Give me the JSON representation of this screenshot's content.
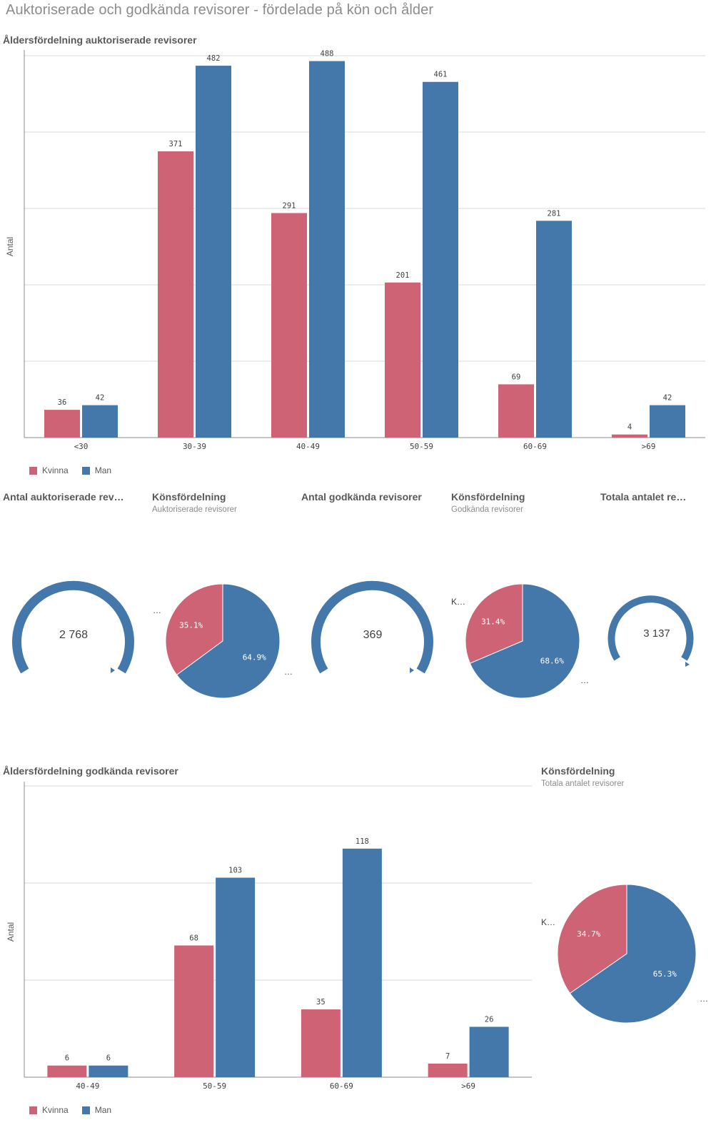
{
  "page_title": "Auktoriserade och godkända revisorer - fördelade på kön och ålder",
  "colors": {
    "kvinna": "#cd6374",
    "man": "#4477aa",
    "grid": "#d9d9d9",
    "axis": "#8c8c8c"
  },
  "legend": {
    "kvinna": "Kvinna",
    "man": "Man"
  },
  "chart1": {
    "title": "Åldersfördelning auktoriserade revisorer",
    "ylabel": "Antal",
    "chart_data": {
      "type": "bar",
      "categories": [
        "<30",
        "30-39",
        "40-49",
        "50-59",
        "60-69",
        ">69"
      ],
      "series": [
        {
          "name": "Kvinna",
          "values": [
            36,
            371,
            291,
            201,
            69,
            4
          ]
        },
        {
          "name": "Man",
          "values": [
            42,
            482,
            488,
            461,
            281,
            42
          ]
        }
      ],
      "ylim": [
        0,
        495
      ],
      "grid": true,
      "legend": "bottom-left"
    }
  },
  "kpi1": {
    "title": "Antal auktoriserade rev…",
    "value": "2 768"
  },
  "pie1": {
    "title": "Könsfördelning",
    "subtitle": "Auktoriserade revisorer",
    "chart_data": {
      "type": "pie",
      "labels": [
        "Kvinna",
        "Man"
      ],
      "values": [
        35.1,
        64.9
      ],
      "value_labels": [
        "35.1%",
        "64.9%"
      ]
    }
  },
  "kpi2": {
    "title": "Antal godkända revisorer",
    "value": "369"
  },
  "pie2": {
    "title": "Könsfördelning",
    "subtitle": "Godkända revisorer",
    "left_label": "K…",
    "chart_data": {
      "type": "pie",
      "labels": [
        "Kvinna",
        "Man"
      ],
      "values": [
        31.4,
        68.6
      ],
      "value_labels": [
        "31.4%",
        "68.6%"
      ]
    }
  },
  "kpi3": {
    "title": "Totala antalet re…",
    "value": "3 137"
  },
  "chart2": {
    "title": "Åldersfördelning godkända revisorer",
    "ylabel": "Antal",
    "chart_data": {
      "type": "bar",
      "categories": [
        "40-49",
        "50-59",
        "60-69",
        ">69"
      ],
      "series": [
        {
          "name": "Kvinna",
          "values": [
            6,
            68,
            35,
            7
          ]
        },
        {
          "name": "Man",
          "values": [
            6,
            103,
            118,
            26
          ]
        }
      ],
      "ylim": [
        0,
        150
      ],
      "grid": true,
      "legend": "bottom-left"
    }
  },
  "pie3": {
    "title": "Könsfördelning",
    "subtitle": "Totala antalet revisorer",
    "left_label": "K…",
    "chart_data": {
      "type": "pie",
      "labels": [
        "Kvinna",
        "Man"
      ],
      "values": [
        34.7,
        65.3
      ],
      "value_labels": [
        "34.7%",
        "65.3%"
      ]
    }
  },
  "ellipsis": "…"
}
